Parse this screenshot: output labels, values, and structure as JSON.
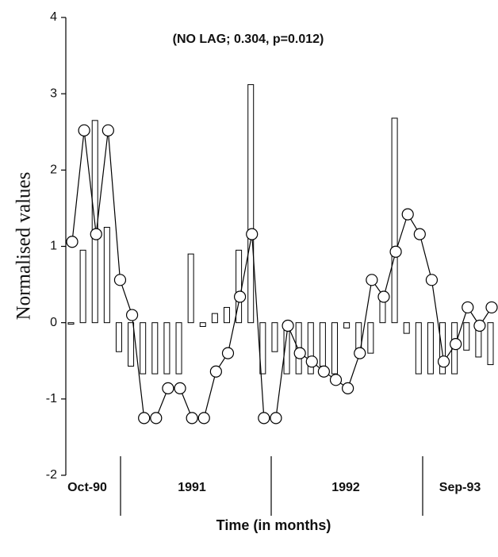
{
  "chart_data": {
    "type": "combo",
    "title": "(NO LAG; 0.304, p=0.012)",
    "y_label": "Normalised values",
    "x_label": "Time (in months)",
    "period_labels": [
      "Oct-90",
      "1991",
      "1992",
      "Sep-93"
    ],
    "ylim": [
      -2,
      4
    ],
    "yticks": [
      -2,
      -1,
      0,
      1,
      2,
      3,
      4
    ],
    "series": [
      {
        "kind": "bar",
        "color": "#ffffff",
        "values": [
          -0.02,
          0.95,
          2.65,
          1.25,
          -0.38,
          -0.57,
          -0.67,
          -0.67,
          -0.67,
          -0.67,
          0.9,
          -0.05,
          0.12,
          0.2,
          0.95,
          3.12,
          -0.67,
          -0.38,
          -0.67,
          -0.67,
          -0.67,
          -0.57,
          -0.67,
          -0.07,
          -0.4,
          -0.4,
          0.3,
          2.68,
          -0.14,
          -0.67,
          -0.67,
          -0.67,
          -0.67,
          -0.36,
          -0.45,
          -0.55
        ]
      },
      {
        "kind": "line",
        "color": "#ffffff",
        "values": [
          1.06,
          2.52,
          1.16,
          2.52,
          0.56,
          0.1,
          -1.25,
          -1.25,
          -0.86,
          -0.86,
          -1.25,
          -1.25,
          -0.64,
          -0.4,
          0.34,
          1.16,
          -1.25,
          -1.25,
          -0.04,
          -0.4,
          -0.51,
          -0.64,
          -0.75,
          -0.86,
          -0.4,
          0.56,
          0.34,
          0.93,
          1.42,
          1.16,
          0.56,
          -0.51,
          -0.28,
          0.2,
          -0.04,
          0.2
        ]
      }
    ]
  }
}
